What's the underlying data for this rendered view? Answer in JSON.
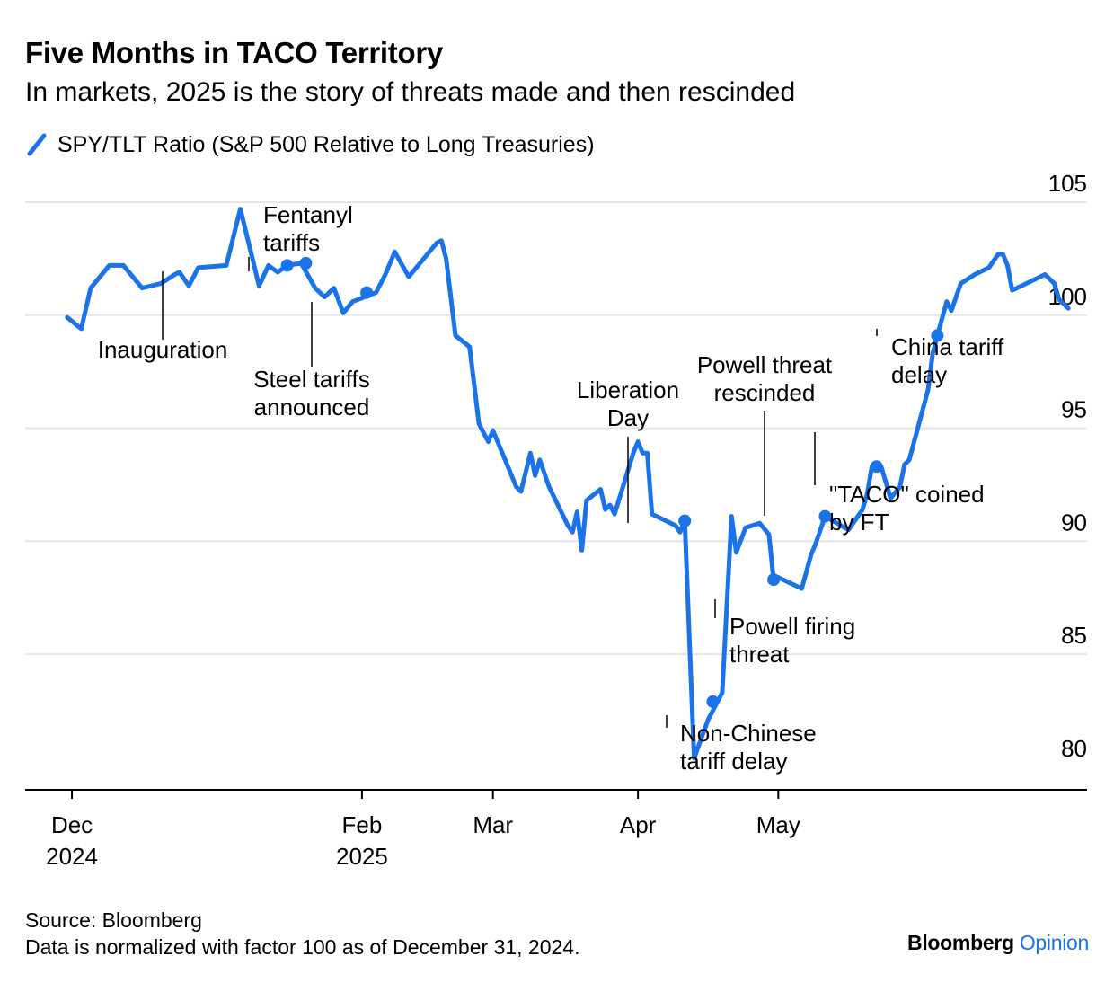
{
  "header": {
    "title": "Five Months in TACO Territory",
    "subtitle": "In markets, 2025 is the story of threats made and then rescinded"
  },
  "legend": {
    "label": "SPY/TLT Ratio (S&P 500 Relative to Long Treasuries)"
  },
  "footer": {
    "source": "Source: Bloomberg",
    "note": "Data is normalized with factor 100 as of December 31, 2024.",
    "brand_main": "Bloomberg",
    "brand_accent": "Opinion"
  },
  "colors": {
    "line": "#1a73e8",
    "grid": "#e6e6e6",
    "axis": "#000000",
    "text": "#000000"
  },
  "chart_data": {
    "type": "line",
    "series": [
      {
        "name": "SPY/TLT Ratio (S&P 500 Relative to Long Treasuries)",
        "color": "#1a73e8",
        "points": [
          [
            "2024-11-30",
            99.9
          ],
          [
            "2024-12-03",
            99.4
          ],
          [
            "2024-12-05",
            101.2
          ],
          [
            "2024-12-09",
            102.2
          ],
          [
            "2024-12-12",
            102.2
          ],
          [
            "2024-12-16",
            101.2
          ],
          [
            "2024-12-20",
            101.4
          ],
          [
            "2024-12-23",
            101.8
          ],
          [
            "2024-12-24",
            101.9
          ],
          [
            "2024-12-26",
            101.3
          ],
          [
            "2024-12-28",
            102.1
          ],
          [
            "2025-01-03",
            102.2
          ],
          [
            "2025-01-06",
            104.7
          ],
          [
            "2025-01-10",
            101.3
          ],
          [
            "2025-01-12",
            102.2
          ],
          [
            "2025-01-14",
            101.9
          ],
          [
            "2025-01-16",
            102.2
          ],
          [
            "2025-01-19",
            102.3
          ],
          [
            "2025-01-22",
            101.2
          ],
          [
            "2025-01-24",
            100.8
          ],
          [
            "2025-01-26",
            101.2
          ],
          [
            "2025-01-28",
            100.1
          ],
          [
            "2025-01-30",
            100.6
          ],
          [
            "2025-02-04",
            101.0
          ],
          [
            "2025-02-06",
            101.8
          ],
          [
            "2025-02-08",
            102.8
          ],
          [
            "2025-02-11",
            101.7
          ],
          [
            "2025-02-17",
            103.2
          ],
          [
            "2025-02-18",
            103.3
          ],
          [
            "2025-02-19",
            102.5
          ],
          [
            "2025-02-21",
            99.1
          ],
          [
            "2025-02-24",
            98.6
          ],
          [
            "2025-02-26",
            95.2
          ],
          [
            "2025-02-28",
            94.4
          ],
          [
            "2025-03-01",
            94.9
          ],
          [
            "2025-03-06",
            92.4
          ],
          [
            "2025-03-07",
            92.2
          ],
          [
            "2025-03-09",
            93.9
          ],
          [
            "2025-03-10",
            92.9
          ],
          [
            "2025-03-11",
            93.6
          ],
          [
            "2025-03-13",
            92.4
          ],
          [
            "2025-03-17",
            90.7
          ],
          [
            "2025-03-18",
            90.4
          ],
          [
            "2025-03-19",
            91.3
          ],
          [
            "2025-03-20",
            89.6
          ],
          [
            "2025-03-21",
            91.8
          ],
          [
            "2025-03-24",
            92.3
          ],
          [
            "2025-03-25",
            91.4
          ],
          [
            "2025-03-26",
            91.6
          ],
          [
            "2025-03-27",
            91.2
          ],
          [
            "2025-03-31",
            93.9
          ],
          [
            "2025-04-01",
            94.4
          ],
          [
            "2025-04-02",
            93.9
          ],
          [
            "2025-04-03",
            93.9
          ],
          [
            "2025-04-04",
            91.2
          ],
          [
            "2025-04-08",
            90.8
          ],
          [
            "2025-04-09",
            90.7
          ],
          [
            "2025-04-10",
            90.4
          ],
          [
            "2025-04-11",
            90.9
          ],
          [
            "2025-04-13",
            80.4
          ],
          [
            "2025-04-16",
            82.1
          ],
          [
            "2025-04-19",
            83.3
          ],
          [
            "2025-04-21",
            91.1
          ],
          [
            "2025-04-22",
            89.5
          ],
          [
            "2025-04-24",
            90.6
          ],
          [
            "2025-04-27",
            90.8
          ],
          [
            "2025-04-29",
            90.3
          ],
          [
            "2025-04-30",
            88.3
          ],
          [
            "2025-05-01",
            88.4
          ],
          [
            "2025-05-04",
            88.1
          ],
          [
            "2025-05-06",
            87.9
          ],
          [
            "2025-05-08",
            89.4
          ],
          [
            "2025-05-09",
            89.9
          ],
          [
            "2025-05-11",
            91.1
          ],
          [
            "2025-05-16",
            90.5
          ],
          [
            "2025-05-19",
            91.4
          ],
          [
            "2025-05-20",
            92.1
          ],
          [
            "2025-05-21",
            93.3
          ],
          [
            "2025-05-23",
            93.3
          ],
          [
            "2025-05-25",
            91.9
          ],
          [
            "2025-05-27",
            92.4
          ],
          [
            "2025-05-28",
            93.4
          ],
          [
            "2025-05-29",
            93.6
          ],
          [
            "2025-06-02",
            96.7
          ],
          [
            "2025-06-03",
            98.3
          ],
          [
            "2025-06-04",
            99.1
          ],
          [
            "2025-06-06",
            100.6
          ],
          [
            "2025-06-07",
            100.2
          ],
          [
            "2025-06-09",
            101.4
          ],
          [
            "2025-06-12",
            101.8
          ],
          [
            "2025-06-15",
            102.1
          ],
          [
            "2025-06-17",
            102.7
          ],
          [
            "2025-06-18",
            102.7
          ],
          [
            "2025-06-19",
            102.2
          ],
          [
            "2025-06-20",
            101.1
          ],
          [
            "2025-06-27",
            101.8
          ],
          [
            "2025-06-29",
            101.4
          ],
          [
            "2025-06-30",
            100.7
          ],
          [
            "2025-07-02",
            100.3
          ]
        ]
      }
    ],
    "markers": [
      {
        "date": "2025-01-16",
        "value": 102.2
      },
      {
        "date": "2025-01-20",
        "value": 102.3
      },
      {
        "date": "2025-02-02",
        "value": 101.0
      },
      {
        "date": "2025-04-11",
        "value": 90.9
      },
      {
        "date": "2025-04-17",
        "value": 82.9
      },
      {
        "date": "2025-04-30",
        "value": 88.3
      },
      {
        "date": "2025-05-11",
        "value": 91.1
      },
      {
        "date": "2025-05-22",
        "value": 93.3
      },
      {
        "date": "2025-06-04",
        "value": 99.1
      }
    ],
    "annotations": [
      {
        "lines": [
          "Fentanyl",
          "tariffs"
        ]
      },
      {
        "lines": [
          "Inauguration"
        ]
      },
      {
        "lines": [
          "Steel tariffs",
          "announced"
        ]
      },
      {
        "lines": [
          "Liberation",
          "Day"
        ]
      },
      {
        "lines": [
          "Non-Chinese",
          "tariff delay"
        ]
      },
      {
        "lines": [
          "Powell firing",
          "threat"
        ]
      },
      {
        "lines": [
          "Powell threat",
          "rescinded"
        ]
      },
      {
        "lines": [
          "\"TACO\" coined",
          "by FT"
        ]
      },
      {
        "lines": [
          "China tariff",
          "delay"
        ]
      }
    ],
    "x_ticks": [
      {
        "date": "2024-12-01",
        "lines": [
          "Dec",
          "2024"
        ]
      },
      {
        "date": "2025-02-01",
        "lines": [
          "Feb",
          "2025"
        ]
      },
      {
        "date": "2025-03-01",
        "lines": [
          "Mar"
        ]
      },
      {
        "date": "2025-04-01",
        "lines": [
          "Apr"
        ]
      },
      {
        "date": "2025-05-01",
        "lines": [
          "May"
        ]
      }
    ],
    "y_ticks": [
      105,
      100,
      95,
      90,
      85,
      80
    ],
    "ylim": [
      79,
      105
    ],
    "xlim": [
      "2024-11-21",
      "2025-07-06"
    ],
    "grid": true,
    "y_axis_side": "right"
  }
}
